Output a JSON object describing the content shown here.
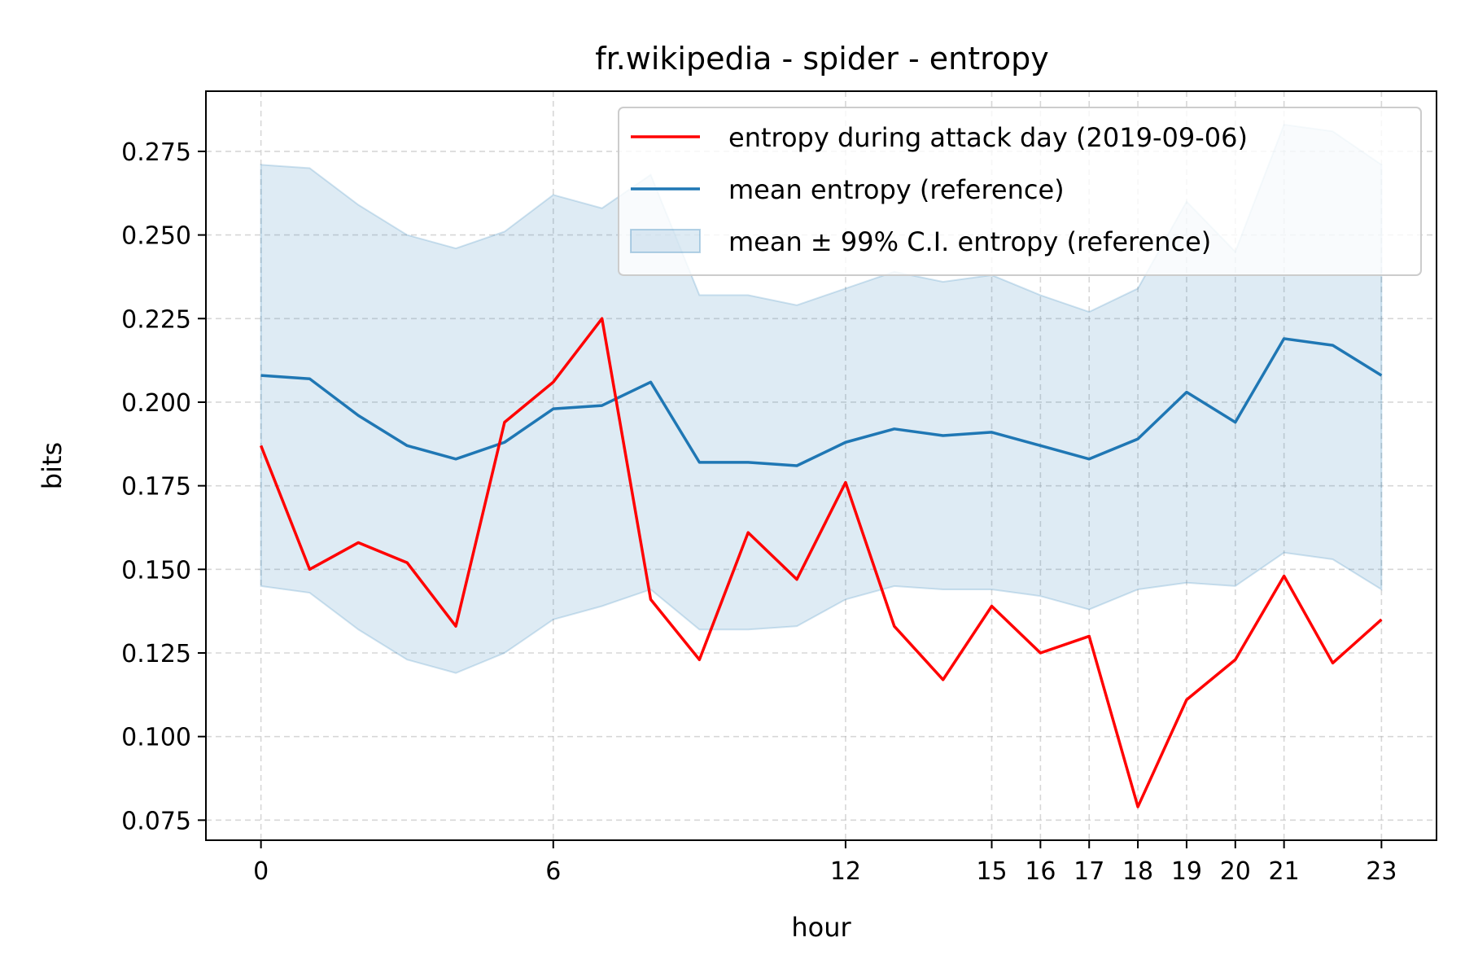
{
  "chart_data": {
    "type": "line",
    "title": "fr.wikipedia - spider - entropy",
    "xlabel": "hour",
    "ylabel": "bits",
    "x": [
      0,
      1,
      2,
      3,
      4,
      5,
      6,
      7,
      8,
      9,
      10,
      11,
      12,
      13,
      14,
      15,
      16,
      17,
      18,
      19,
      20,
      21,
      22,
      23
    ],
    "xticks": [
      0,
      6,
      12,
      15,
      16,
      17,
      18,
      19,
      20,
      21,
      23
    ],
    "yticks": [
      0.075,
      0.1,
      0.125,
      0.15,
      0.175,
      0.2,
      0.225,
      0.25,
      0.275
    ],
    "ytick_labels": [
      "0.075",
      "0.100",
      "0.125",
      "0.150",
      "0.175",
      "0.200",
      "0.225",
      "0.250",
      "0.275"
    ],
    "xlim": [
      -1.13,
      24.13
    ],
    "ylim": [
      0.069,
      0.293
    ],
    "grid": true,
    "legend_position": "top-right",
    "series": [
      {
        "name": "entropy during attack day (2019-09-06)",
        "color": "#ff0000",
        "values": [
          0.187,
          0.15,
          0.158,
          0.152,
          0.133,
          0.194,
          0.206,
          0.225,
          0.141,
          0.123,
          0.161,
          0.147,
          0.176,
          0.133,
          0.117,
          0.139,
          0.125,
          0.13,
          0.079,
          0.111,
          0.123,
          0.148,
          0.122,
          0.135
        ]
      },
      {
        "name": "mean entropy (reference)",
        "color": "#1f77b4",
        "values": [
          0.208,
          0.207,
          0.196,
          0.187,
          0.183,
          0.188,
          0.198,
          0.199,
          0.206,
          0.182,
          0.182,
          0.181,
          0.188,
          0.192,
          0.19,
          0.191,
          0.187,
          0.183,
          0.189,
          0.203,
          0.194,
          0.219,
          0.217,
          0.208
        ]
      }
    ],
    "band": {
      "name": "mean ± 99% C.I. entropy (reference)",
      "color": "#1f77b4",
      "lower": [
        0.145,
        0.143,
        0.132,
        0.123,
        0.119,
        0.125,
        0.135,
        0.139,
        0.144,
        0.132,
        0.132,
        0.133,
        0.141,
        0.145,
        0.144,
        0.144,
        0.142,
        0.138,
        0.144,
        0.146,
        0.145,
        0.155,
        0.153,
        0.144
      ],
      "upper": [
        0.271,
        0.27,
        0.259,
        0.25,
        0.246,
        0.251,
        0.262,
        0.258,
        0.268,
        0.232,
        0.232,
        0.229,
        0.234,
        0.239,
        0.236,
        0.238,
        0.232,
        0.227,
        0.234,
        0.26,
        0.245,
        0.283,
        0.281,
        0.271
      ]
    }
  }
}
